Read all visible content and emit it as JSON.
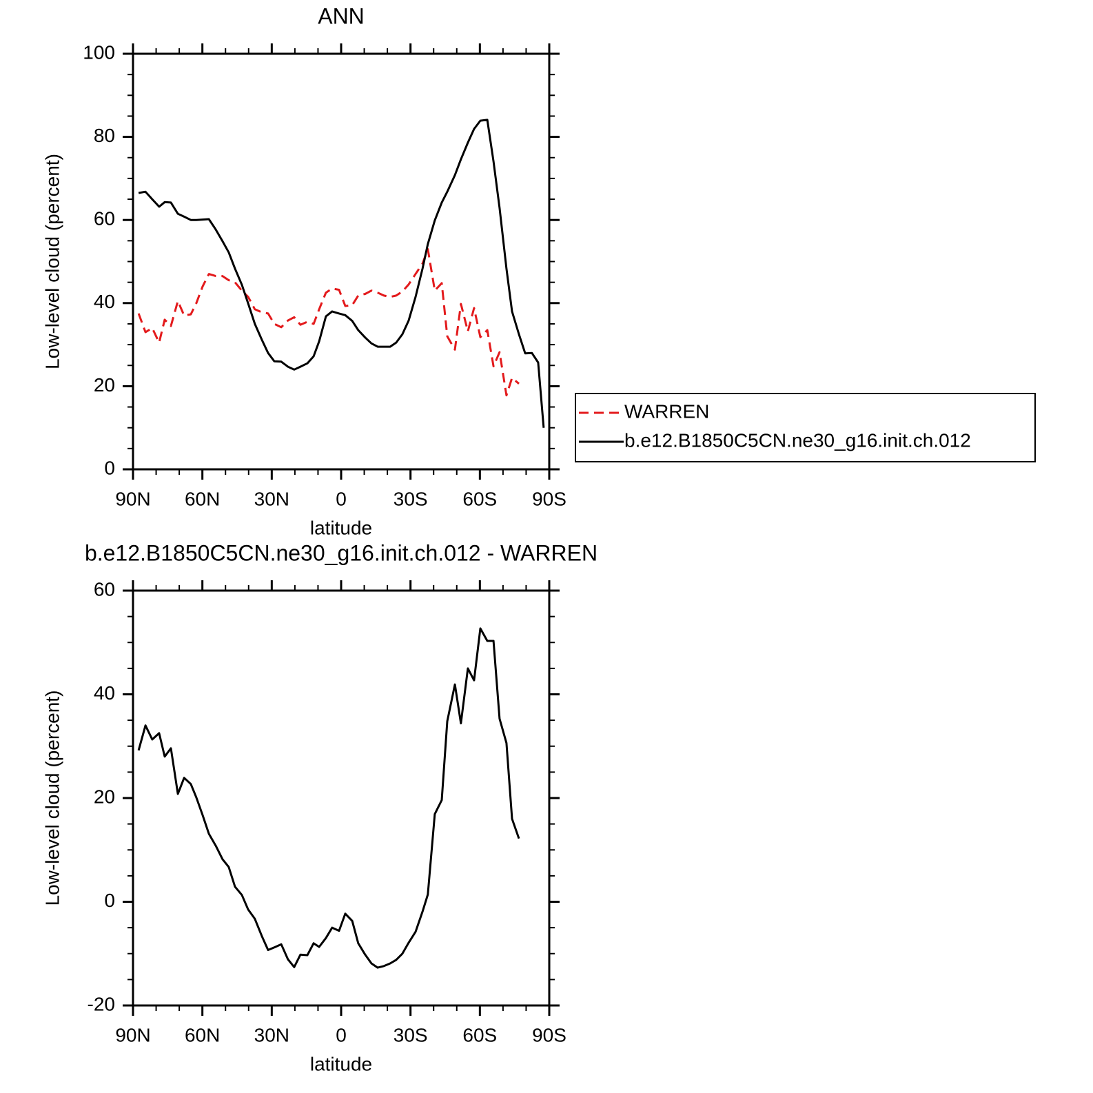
{
  "chart_data": [
    {
      "type": "line",
      "title": "ANN",
      "xlabel": "latitude",
      "ylabel": "Low-level cloud (percent)",
      "xlim": [
        90,
        -90
      ],
      "ylim": [
        0,
        100
      ],
      "xticks": [
        {
          "value": 90,
          "label": "90N"
        },
        {
          "value": 60,
          "label": "60N"
        },
        {
          "value": 30,
          "label": "30N"
        },
        0,
        {
          "value": -30,
          "label": "30S"
        },
        {
          "value": -60,
          "label": "60S"
        },
        {
          "value": -90,
          "label": "90S"
        }
      ],
      "yticks": [
        0,
        20,
        40,
        60,
        80,
        100
      ],
      "xminorticks": [
        80,
        70,
        50,
        40,
        20,
        10,
        -10,
        -20,
        -40,
        -50,
        -70,
        -80
      ],
      "yminorticks": [
        5,
        10,
        15,
        25,
        30,
        35,
        45,
        50,
        55,
        65,
        70,
        75,
        85,
        90,
        95
      ],
      "legend": "right",
      "x": [
        87.6,
        84.6,
        81.7,
        78.7,
        76.3,
        73.6,
        70.6,
        67.9,
        65.0,
        62.6,
        59.9,
        57.2,
        54.2,
        51.3,
        48.6,
        45.9,
        42.9,
        40.2,
        37.3,
        34.3,
        31.6,
        28.9,
        25.9,
        23.0,
        20.3,
        17.6,
        14.6,
        11.9,
        9.5,
        6.6,
        3.9,
        0.9,
        -1.8,
        -4.8,
        -7.4,
        -10.4,
        -13.1,
        -15.8,
        -18.5,
        -21.2,
        -23.8,
        -26.5,
        -29.2,
        -32.2,
        -35.2,
        -37.5,
        -40.5,
        -43.5,
        -45.9,
        -49.2,
        -51.8,
        -54.8,
        -57.5,
        -60.2,
        -63.2,
        -65.9,
        -68.5,
        -71.5,
        -73.9,
        -76.9,
        -79.6,
        -82.5,
        -85.2,
        -87.6
      ],
      "series": [
        {
          "name": "WARREN",
          "color": "#e31a1c",
          "dash": true,
          "values": [
            37.5,
            33,
            34,
            30.5,
            36,
            34.5,
            40.5,
            37,
            37.3,
            40,
            44,
            47,
            46.5,
            46.5,
            45.5,
            45,
            43,
            41.5,
            38.5,
            37.8,
            37.5,
            35,
            34.2,
            35.8,
            36.6,
            34.8,
            35.5,
            35,
            38.5,
            42.5,
            43.5,
            43.2,
            39.3,
            39.5,
            41.8,
            42.2,
            43,
            42.5,
            41.8,
            41.5,
            41.8,
            42.8,
            44.5,
            47,
            49.5,
            53,
            43,
            44.8,
            32,
            28.8,
            39.8,
            33.2,
            38.8,
            31.8,
            33.5,
            24.8,
            28.2,
            17.8,
            22,
            20.6,
            null,
            null,
            null,
            null
          ]
        },
        {
          "name": "b.e12.B1850C5CN.ne30_g16.init.ch.012",
          "color": "#000000",
          "dash": false,
          "values": [
            66.5,
            66.8,
            65.0,
            63.2,
            64.3,
            64.2,
            61.5,
            60.8,
            60.0,
            60.0,
            60.1,
            60.2,
            57.7,
            54.9,
            52.2,
            48.3,
            44.4,
            39.9,
            35.0,
            31.2,
            28.0,
            26.0,
            25.9,
            24.7,
            24.0,
            24.7,
            25.5,
            27.2,
            30.8,
            36.8,
            38.0,
            37.5,
            37.1,
            35.7,
            33.5,
            31.7,
            30.3,
            29.5,
            29.5,
            29.5,
            30.5,
            32.5,
            35.8,
            41.5,
            48.3,
            54.2,
            59.9,
            64.2,
            66.8,
            70.8,
            74.6,
            78.6,
            81.9,
            83.9,
            84.1,
            74.1,
            62.9,
            48.3,
            38.0,
            32.5,
            27.9,
            28.0,
            25.7,
            10.0
          ]
        }
      ]
    },
    {
      "type": "line",
      "title": "b.e12.B1850C5CN.ne30_g16.init.ch.012 - WARREN",
      "xlabel": "latitude",
      "ylabel": "Low-level cloud (percent)",
      "xlim": [
        90,
        -90
      ],
      "ylim": [
        -20,
        60
      ],
      "xticks": [
        {
          "value": 90,
          "label": "90N"
        },
        {
          "value": 60,
          "label": "60N"
        },
        {
          "value": 30,
          "label": "30N"
        },
        0,
        {
          "value": -30,
          "label": "30S"
        },
        {
          "value": -60,
          "label": "60S"
        },
        {
          "value": -90,
          "label": "90S"
        }
      ],
      "yticks": [
        -20,
        0,
        20,
        40,
        60
      ],
      "xminorticks": [
        80,
        70,
        50,
        40,
        20,
        10,
        -10,
        -20,
        -40,
        -50,
        -70,
        -80
      ],
      "yminorticks": [
        -15,
        -10,
        -5,
        5,
        10,
        15,
        25,
        30,
        35,
        45,
        50,
        55
      ],
      "x": [
        87.6,
        84.6,
        81.7,
        78.7,
        76.3,
        73.6,
        70.6,
        67.9,
        65.0,
        62.6,
        59.9,
        57.2,
        54.2,
        51.3,
        48.6,
        45.9,
        42.9,
        40.2,
        37.3,
        34.3,
        31.6,
        28.9,
        25.9,
        23.0,
        20.3,
        17.6,
        14.6,
        11.9,
        9.5,
        6.6,
        3.9,
        0.9,
        -1.8,
        -4.8,
        -7.4,
        -10.4,
        -13.1,
        -15.8,
        -18.5,
        -21.2,
        -23.8,
        -26.5,
        -29.2,
        -32.2,
        -35.2,
        -37.5,
        -40.5,
        -43.5,
        -45.9,
        -49.2,
        -51.8,
        -54.8,
        -57.5,
        -60.2,
        -63.2,
        -65.9,
        -68.5,
        -71.5,
        -73.9,
        -76.9
      ],
      "series": [
        {
          "color": "#000000",
          "dash": false,
          "values": [
            29.2,
            34.0,
            31.3,
            32.5,
            28.0,
            29.6,
            20.8,
            23.9,
            22.7,
            20.1,
            16.7,
            13.1,
            10.8,
            8.2,
            6.7,
            2.9,
            1.3,
            -1.5,
            -3.3,
            -6.6,
            -9.3,
            -8.8,
            -8.2,
            -11.1,
            -12.6,
            -10.2,
            -10.3,
            -8.0,
            -8.7,
            -7.0,
            -5.0,
            -5.6,
            -2.3,
            -3.7,
            -8.0,
            -10.2,
            -11.9,
            -12.7,
            -12.4,
            -11.9,
            -11.2,
            -10.0,
            -7.9,
            -5.8,
            -1.9,
            1.4,
            16.9,
            19.6,
            34.8,
            41.9,
            34.4,
            45.0,
            42.7,
            52.7,
            50.3,
            50.3,
            35.3,
            30.6,
            16.0,
            12.2
          ]
        }
      ]
    }
  ]
}
